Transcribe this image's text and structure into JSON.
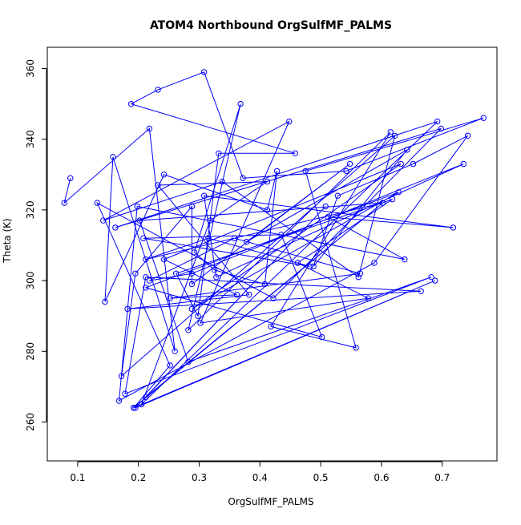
{
  "chart_data": {
    "type": "scatter",
    "title": "ATOM4 Northbound OrgSulfMF_PALMS",
    "xlabel": "OrgSulfMF_PALMS",
    "ylabel": "Theta (K)",
    "xlim": [
      0.05,
      0.79
    ],
    "ylim": [
      249,
      366
    ],
    "xticks": [
      0.1,
      0.2,
      0.3,
      0.4,
      0.5,
      0.6,
      0.7
    ],
    "yticks": [
      260,
      280,
      300,
      320,
      340,
      360
    ],
    "grid": false,
    "legend": "none",
    "connected": true,
    "marker": "open-circle",
    "series": [
      {
        "color": "#0000ff",
        "x": [
          0.088,
          0.078,
          0.218,
          0.26,
          0.158,
          0.145,
          0.242,
          0.412,
          0.428,
          0.408,
          0.325,
          0.292,
          0.368,
          0.282,
          0.615,
          0.418,
          0.558,
          0.475,
          0.768,
          0.542,
          0.372,
          0.308,
          0.232,
          0.188,
          0.458,
          0.332,
          0.298,
          0.262,
          0.618,
          0.462,
          0.578,
          0.302,
          0.448,
          0.142,
          0.338,
          0.562,
          0.622,
          0.172,
          0.195,
          0.288,
          0.288,
          0.548,
          0.378,
          0.642,
          0.488,
          0.528,
          0.652,
          0.742,
          0.588,
          0.168,
          0.198,
          0.638,
          0.512,
          0.718,
          0.308,
          0.328,
          0.735,
          0.288,
          0.218,
          0.358,
          0.565,
          0.252,
          0.362,
          0.242,
          0.632,
          0.288,
          0.628,
          0.212,
          0.502,
          0.435,
          0.208,
          0.482,
          0.315,
          0.212,
          0.602,
          0.202,
          0.282,
          0.682,
          0.178,
          0.212,
          0.665,
          0.182,
          0.382,
          0.232,
          0.412,
          0.318,
          0.205,
          0.692,
          0.162,
          0.698,
          0.422,
          0.132,
          0.252,
          0.192,
          0.602,
          0.212,
          0.508,
          0.195,
          0.688,
          0.192
        ],
        "y": [
          329,
          322,
          343,
          280,
          335,
          294,
          330,
          320,
          331,
          299,
          303,
          308,
          350,
          286,
          342,
          287,
          281,
          331,
          346,
          331,
          329,
          359,
          354,
          350,
          336,
          336,
          290,
          302,
          323,
          305,
          295,
          288,
          345,
          317,
          328,
          301,
          341,
          273,
          302,
          321,
          299,
          333,
          311,
          337,
          304,
          324,
          333,
          341,
          305,
          266,
          321,
          306,
          318,
          315,
          324,
          301,
          333,
          302,
          300,
          312,
          302,
          295,
          296,
          306,
          333,
          292,
          325,
          298,
          284,
          313,
          312,
          304,
          312,
          306,
          322,
          317,
          277,
          301,
          268,
          301,
          297,
          292,
          296,
          327,
          328,
          317,
          265,
          345,
          315,
          343,
          295,
          322,
          276,
          264,
          322,
          267,
          321,
          264,
          300,
          264
        ]
      }
    ]
  }
}
